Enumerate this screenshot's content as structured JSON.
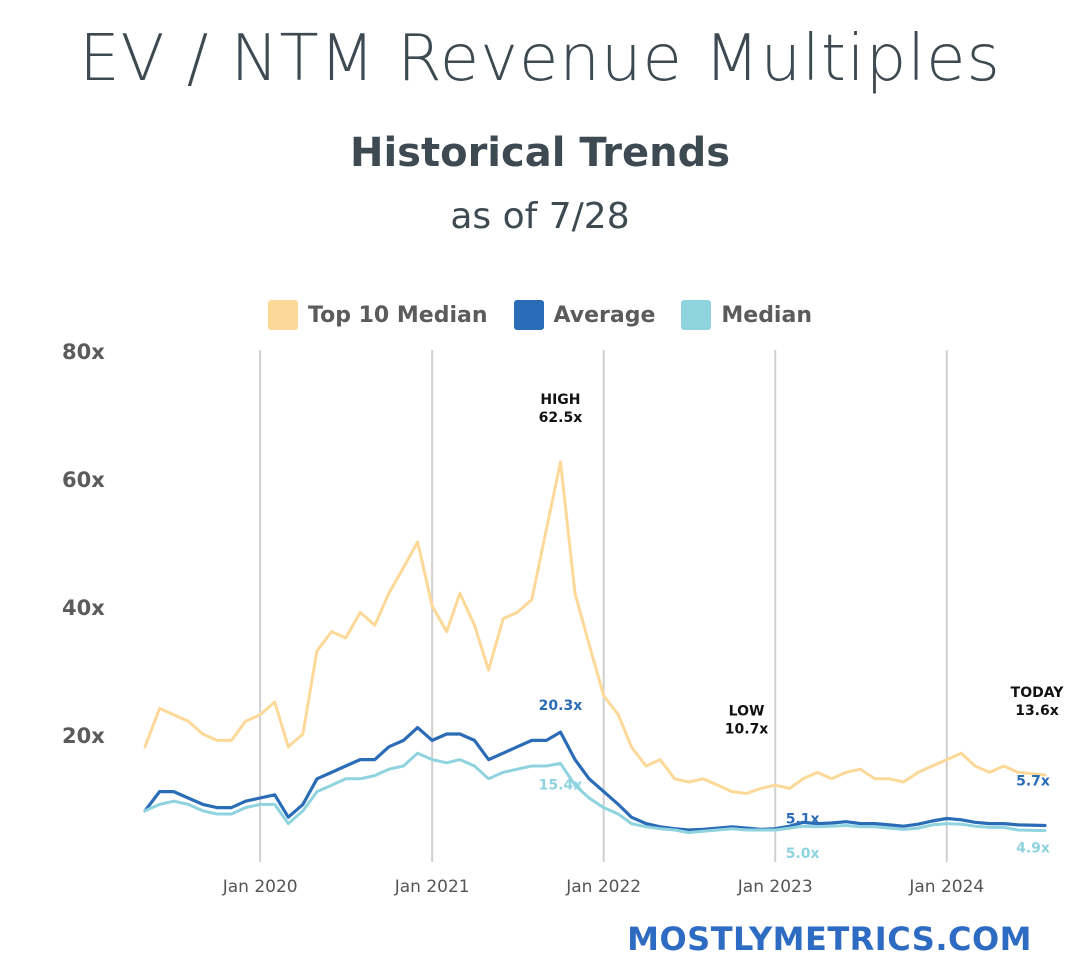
{
  "title": "EV / NTM Revenue Multiples",
  "subtitle": "Historical Trends",
  "as_of": "as of 7/28",
  "footer": "MOSTLYMETRICS.COM",
  "colors": {
    "top10": "#fcd999",
    "average": "#2b6cb7",
    "median": "#8fd3df",
    "grid": "#d0d0d0",
    "text": "#3e4a52"
  },
  "legend": [
    {
      "name": "Top 10 Median",
      "color": "#fcd999"
    },
    {
      "name": "Average",
      "color": "#2b6cb7"
    },
    {
      "name": "Median",
      "color": "#8fd3df"
    }
  ],
  "chart_data": {
    "type": "line",
    "title": "",
    "xlabel": "",
    "ylabel": "",
    "ylim": [
      0,
      80
    ],
    "xlim": [
      "2019-05-01",
      "2024-07-28"
    ],
    "y_ticks": [
      20,
      40,
      60,
      80
    ],
    "y_tick_labels": [
      "20x",
      "40x",
      "60x",
      "80x"
    ],
    "x_ticks": [
      "2020-01-01",
      "2021-01-01",
      "2022-01-01",
      "2023-01-01",
      "2024-01-01"
    ],
    "x_tick_labels": [
      "Jan 2020",
      "Jan 2021",
      "Jan 2022",
      "Jan 2023",
      "Jan 2024"
    ],
    "grid": "vertical",
    "legend_position": "top",
    "series": [
      {
        "name": "Top 10 Median",
        "color": "#fcd999",
        "x": [
          "2019-05-01",
          "2019-06-01",
          "2019-07-01",
          "2019-08-01",
          "2019-09-01",
          "2019-10-01",
          "2019-11-01",
          "2019-12-01",
          "2020-01-01",
          "2020-02-01",
          "2020-03-01",
          "2020-04-01",
          "2020-05-01",
          "2020-06-01",
          "2020-07-01",
          "2020-08-01",
          "2020-09-01",
          "2020-10-01",
          "2020-11-01",
          "2020-12-01",
          "2021-01-01",
          "2021-02-01",
          "2021-03-01",
          "2021-04-01",
          "2021-05-01",
          "2021-06-01",
          "2021-07-01",
          "2021-08-01",
          "2021-09-01",
          "2021-10-01",
          "2021-11-01",
          "2021-12-01",
          "2022-01-01",
          "2022-02-01",
          "2022-03-01",
          "2022-04-01",
          "2022-05-01",
          "2022-06-01",
          "2022-07-01",
          "2022-08-01",
          "2022-09-01",
          "2022-10-01",
          "2022-11-01",
          "2022-12-01",
          "2023-01-01",
          "2023-02-01",
          "2023-03-01",
          "2023-04-01",
          "2023-05-01",
          "2023-06-01",
          "2023-07-01",
          "2023-08-01",
          "2023-09-01",
          "2023-10-01",
          "2023-11-01",
          "2023-12-01",
          "2024-01-01",
          "2024-02-01",
          "2024-03-01",
          "2024-04-01",
          "2024-05-01",
          "2024-06-01",
          "2024-07-28"
        ],
        "y": [
          18,
          24,
          23,
          22,
          20,
          19,
          19,
          22,
          23,
          25,
          18,
          20,
          33,
          36,
          35,
          39,
          37,
          42,
          46,
          50,
          40,
          36,
          42,
          37,
          30,
          38,
          39,
          41,
          52,
          62.5,
          42,
          34,
          26,
          23,
          18,
          15,
          16,
          13,
          12.5,
          13,
          12,
          11,
          10.7,
          11.5,
          12,
          11.5,
          13,
          14,
          13,
          14,
          14.5,
          13,
          13,
          12.5,
          14,
          15,
          16,
          17,
          15,
          14,
          15,
          14,
          13.6
        ]
      },
      {
        "name": "Average",
        "color": "#2b6cb7",
        "x": [
          "2019-05-01",
          "2019-06-01",
          "2019-07-01",
          "2019-08-01",
          "2019-09-01",
          "2019-10-01",
          "2019-11-01",
          "2019-12-01",
          "2020-01-01",
          "2020-02-01",
          "2020-03-01",
          "2020-04-01",
          "2020-05-01",
          "2020-06-01",
          "2020-07-01",
          "2020-08-01",
          "2020-09-01",
          "2020-10-01",
          "2020-11-01",
          "2020-12-01",
          "2021-01-01",
          "2021-02-01",
          "2021-03-01",
          "2021-04-01",
          "2021-05-01",
          "2021-06-01",
          "2021-07-01",
          "2021-08-01",
          "2021-09-01",
          "2021-10-01",
          "2021-11-01",
          "2021-12-01",
          "2022-01-01",
          "2022-02-01",
          "2022-03-01",
          "2022-04-01",
          "2022-05-01",
          "2022-06-01",
          "2022-07-01",
          "2022-08-01",
          "2022-09-01",
          "2022-10-01",
          "2022-11-01",
          "2022-12-01",
          "2023-01-01",
          "2023-02-01",
          "2023-03-01",
          "2023-04-01",
          "2023-05-01",
          "2023-06-01",
          "2023-07-01",
          "2023-08-01",
          "2023-09-01",
          "2023-10-01",
          "2023-11-01",
          "2023-12-01",
          "2024-01-01",
          "2024-02-01",
          "2024-03-01",
          "2024-04-01",
          "2024-05-01",
          "2024-06-01",
          "2024-07-28"
        ],
        "y": [
          8,
          11,
          11,
          10,
          9,
          8.5,
          8.5,
          9.5,
          10,
          10.5,
          7,
          9,
          13,
          14,
          15,
          16,
          16,
          18,
          19,
          21,
          19,
          20,
          20,
          19,
          16,
          17,
          18,
          19,
          19,
          20.3,
          16,
          13,
          11,
          9,
          7,
          6,
          5.5,
          5.2,
          5.0,
          5.1,
          5.3,
          5.5,
          5.3,
          5.1,
          5.2,
          5.6,
          6.2,
          6.0,
          6.1,
          6.3,
          6.0,
          6.0,
          5.8,
          5.6,
          5.9,
          6.4,
          6.8,
          6.6,
          6.2,
          6.0,
          6.0,
          5.8,
          5.7
        ]
      },
      {
        "name": "Median",
        "color": "#8fd3df",
        "x": [
          "2019-05-01",
          "2019-06-01",
          "2019-07-01",
          "2019-08-01",
          "2019-09-01",
          "2019-10-01",
          "2019-11-01",
          "2019-12-01",
          "2020-01-01",
          "2020-02-01",
          "2020-03-01",
          "2020-04-01",
          "2020-05-01",
          "2020-06-01",
          "2020-07-01",
          "2020-08-01",
          "2020-09-01",
          "2020-10-01",
          "2020-11-01",
          "2020-12-01",
          "2021-01-01",
          "2021-02-01",
          "2021-03-01",
          "2021-04-01",
          "2021-05-01",
          "2021-06-01",
          "2021-07-01",
          "2021-08-01",
          "2021-09-01",
          "2021-10-01",
          "2021-11-01",
          "2021-12-01",
          "2022-01-01",
          "2022-02-01",
          "2022-03-01",
          "2022-04-01",
          "2022-05-01",
          "2022-06-01",
          "2022-07-01",
          "2022-08-01",
          "2022-09-01",
          "2022-10-01",
          "2022-11-01",
          "2022-12-01",
          "2023-01-01",
          "2023-02-01",
          "2023-03-01",
          "2023-04-01",
          "2023-05-01",
          "2023-06-01",
          "2023-07-01",
          "2023-08-01",
          "2023-09-01",
          "2023-10-01",
          "2023-11-01",
          "2023-12-01",
          "2024-01-01",
          "2024-02-01",
          "2024-03-01",
          "2024-04-01",
          "2024-05-01",
          "2024-06-01",
          "2024-07-28"
        ],
        "y": [
          8,
          9,
          9.5,
          9,
          8,
          7.5,
          7.5,
          8.5,
          9,
          9,
          6,
          8,
          11,
          12,
          13,
          13,
          13.5,
          14.5,
          15,
          17,
          16,
          15.5,
          16,
          15,
          13,
          14,
          14.5,
          15,
          15,
          15.4,
          12,
          10,
          8.5,
          7.5,
          6.0,
          5.5,
          5.2,
          5.0,
          4.6,
          4.8,
          5.0,
          5.2,
          5.0,
          5.0,
          5.0,
          5.3,
          5.6,
          5.5,
          5.6,
          5.7,
          5.5,
          5.5,
          5.3,
          5.1,
          5.3,
          5.8,
          6.0,
          5.9,
          5.6,
          5.4,
          5.4,
          5.0,
          4.9
        ]
      }
    ],
    "annotations": [
      {
        "label": "HIGH",
        "value_label": "62.5x",
        "series": "Top 10 Median",
        "x": "2021-10-01",
        "y": 62.5
      },
      {
        "label": "LOW",
        "value_label": "10.7x",
        "series": "Top 10 Median",
        "x": "2022-11-01",
        "y": 10.7
      },
      {
        "label": "TODAY",
        "value_label": "13.6x",
        "series": "Top 10 Median",
        "x": "2024-07-28",
        "y": 13.6
      },
      {
        "label": "",
        "value_label": "20.3x",
        "series": "Average",
        "x": "2021-10-01",
        "y": 20.3
      },
      {
        "label": "",
        "value_label": "15.4x",
        "series": "Median",
        "x": "2021-10-01",
        "y": 15.4
      },
      {
        "label": "",
        "value_label": "5.1x",
        "series": "Average",
        "x": "2022-12-01",
        "y": 5.1
      },
      {
        "label": "",
        "value_label": "5.0x",
        "series": "Median",
        "x": "2022-12-01",
        "y": 5.0
      },
      {
        "label": "",
        "value_label": "5.7x",
        "series": "Average",
        "x": "2024-07-28",
        "y": 5.7
      },
      {
        "label": "",
        "value_label": "4.9x",
        "series": "Median",
        "x": "2024-07-28",
        "y": 4.9
      }
    ]
  }
}
